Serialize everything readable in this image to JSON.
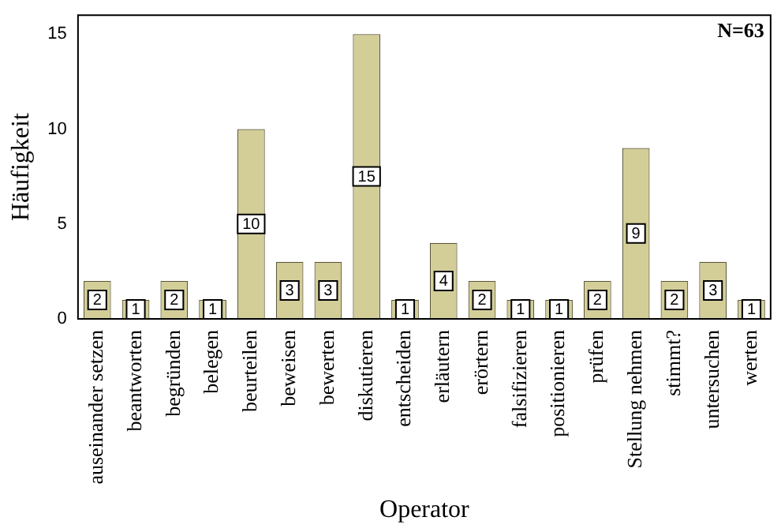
{
  "chart_data": {
    "type": "bar",
    "xlabel": "Operator",
    "ylabel": "Häufigkeit",
    "categories": [
      "auseinander setzen",
      "beantworten",
      "begründen",
      "belegen",
      "beurteilen",
      "beweisen",
      "bewerten",
      "diskutieren",
      "entscheiden",
      "erläutern",
      "erörtern",
      "falsifizieren",
      "positionieren",
      "prüfen",
      "Stellung nehmen",
      "stimmt?",
      "untersuchen",
      "werten"
    ],
    "values": [
      2,
      1,
      2,
      1,
      10,
      3,
      3,
      15,
      1,
      4,
      2,
      1,
      1,
      2,
      9,
      2,
      3,
      1
    ],
    "color": "#d3ce98",
    "ylim": [
      0,
      16
    ],
    "yticks": [
      0,
      5,
      10,
      15
    ],
    "grid": false,
    "legend": false,
    "data_labels": true,
    "annotations": [
      "N=63"
    ]
  }
}
